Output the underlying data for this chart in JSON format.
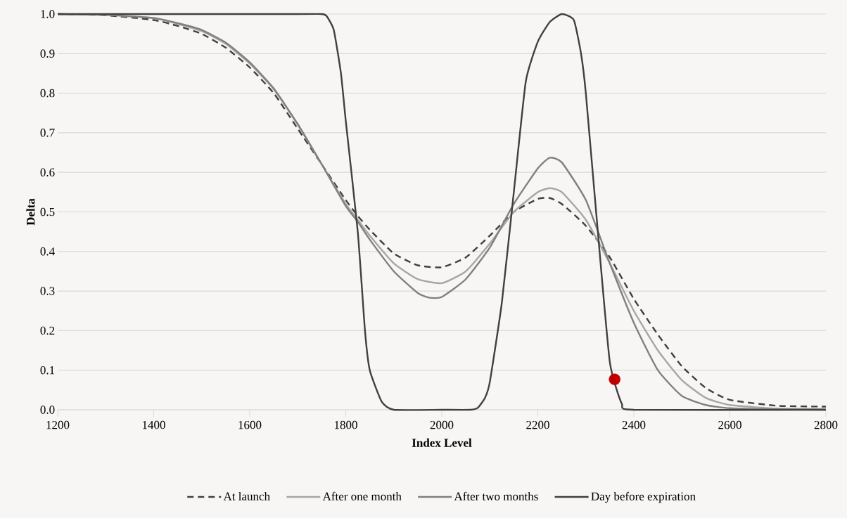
{
  "chart_data": {
    "type": "line",
    "xlabel": "Index Level",
    "ylabel": "Delta",
    "xlim": [
      1200,
      2800
    ],
    "ylim": [
      0,
      1
    ],
    "xticks": [
      1200,
      1400,
      1600,
      1800,
      2000,
      2200,
      2400,
      2600,
      2800
    ],
    "yticks": [
      {
        "value": 0,
        "label": "0.0"
      },
      {
        "value": 0.1,
        "label": "0.1"
      },
      {
        "value": 0.2,
        "label": "0.2"
      },
      {
        "value": 0.3,
        "label": "0.3"
      },
      {
        "value": 0.4,
        "label": "0.4"
      },
      {
        "value": 0.5,
        "label": "0.5"
      },
      {
        "value": 0.6,
        "label": "0.6"
      },
      {
        "value": 0.7,
        "label": "0.7"
      },
      {
        "value": 0.8,
        "label": "0.8"
      },
      {
        "value": 0.9,
        "label": "0.9"
      },
      {
        "value": 1,
        "label": "1.0"
      }
    ],
    "grid": "y",
    "legend": "bottom",
    "series": [
      {
        "name": "At launch",
        "color": "#404040",
        "line_style": "dashed",
        "x": [
          1200,
          1300,
          1400,
          1450,
          1500,
          1550,
          1600,
          1650,
          1700,
          1750,
          1800,
          1825,
          1850,
          1900,
          1950,
          2000,
          2050,
          2100,
          2150,
          2200,
          2225,
          2250,
          2300,
          2350,
          2400,
          2450,
          2500,
          2550,
          2600,
          2700,
          2800
        ],
        "values": [
          1.0,
          0.997,
          0.985,
          0.97,
          0.95,
          0.915,
          0.865,
          0.8,
          0.71,
          0.62,
          0.53,
          0.49,
          0.455,
          0.395,
          0.365,
          0.36,
          0.385,
          0.44,
          0.5,
          0.533,
          0.535,
          0.52,
          0.465,
          0.385,
          0.28,
          0.19,
          0.11,
          0.055,
          0.025,
          0.01,
          0.008
        ]
      },
      {
        "name": "After one month",
        "color": "#a6a6a6",
        "line_style": "solid",
        "x": [
          1200,
          1300,
          1400,
          1450,
          1500,
          1550,
          1600,
          1650,
          1700,
          1750,
          1800,
          1825,
          1850,
          1900,
          1950,
          2000,
          2050,
          2100,
          2150,
          2200,
          2225,
          2250,
          2300,
          2350,
          2400,
          2450,
          2500,
          2550,
          2600,
          2700,
          2800
        ],
        "values": [
          1.0,
          0.998,
          0.99,
          0.975,
          0.957,
          0.925,
          0.875,
          0.81,
          0.72,
          0.62,
          0.52,
          0.48,
          0.44,
          0.37,
          0.33,
          0.32,
          0.35,
          0.42,
          0.5,
          0.55,
          0.56,
          0.55,
          0.48,
          0.37,
          0.25,
          0.15,
          0.075,
          0.03,
          0.012,
          0.003,
          0.002
        ]
      },
      {
        "name": "After two months",
        "color": "#808080",
        "line_style": "solid",
        "x": [
          1200,
          1300,
          1400,
          1450,
          1500,
          1550,
          1600,
          1650,
          1700,
          1750,
          1800,
          1825,
          1850,
          1900,
          1950,
          1975,
          2000,
          2050,
          2100,
          2150,
          2200,
          2225,
          2250,
          2300,
          2350,
          2400,
          2450,
          2500,
          2550,
          2600,
          2700,
          2800
        ],
        "values": [
          1.0,
          0.998,
          0.99,
          0.977,
          0.96,
          0.928,
          0.878,
          0.812,
          0.722,
          0.62,
          0.515,
          0.475,
          0.43,
          0.35,
          0.295,
          0.283,
          0.285,
          0.33,
          0.41,
          0.52,
          0.61,
          0.637,
          0.625,
          0.53,
          0.37,
          0.22,
          0.1,
          0.035,
          0.012,
          0.004,
          0.001,
          0
        ]
      },
      {
        "name": "Day before expiration",
        "color": "#404040",
        "line_style": "solid",
        "x": [
          1200,
          1700,
          1750,
          1760,
          1775,
          1790,
          1800,
          1825,
          1840,
          1850,
          1875,
          1900,
          2000,
          2060,
          2075,
          2090,
          2100,
          2125,
          2150,
          2175,
          2200,
          2225,
          2250,
          2275,
          2290,
          2300,
          2325,
          2350,
          2375,
          2400,
          2800
        ],
        "values": [
          1,
          1,
          1,
          0.995,
          0.96,
          0.85,
          0.73,
          0.45,
          0.2,
          0.1,
          0.02,
          0,
          0,
          0,
          0.005,
          0.03,
          0.07,
          0.27,
          0.55,
          0.83,
          0.93,
          0.98,
          1.0,
          0.985,
          0.9,
          0.8,
          0.45,
          0.12,
          0.015,
          0,
          0
        ]
      },
      {
        "type": "scatter",
        "marker": "circle",
        "color": "#c00000",
        "x": [
          2360
        ],
        "values": [
          0.077
        ]
      }
    ]
  }
}
